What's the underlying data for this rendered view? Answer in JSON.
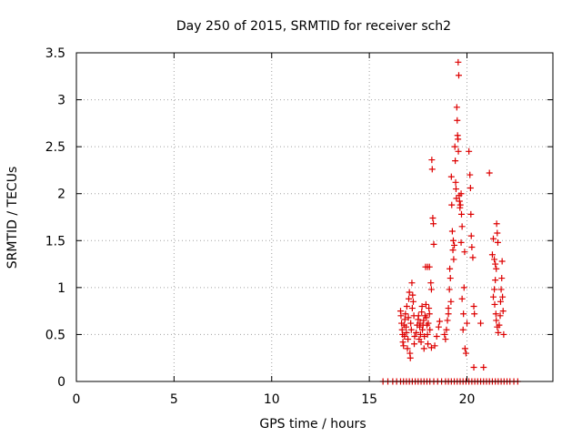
{
  "chart_data": {
    "type": "scatter",
    "title": "Day 250 of 2015, SRMTID for receiver sch2",
    "xlabel": "GPS time / hours",
    "ylabel": "SRMTID / TECUs",
    "xlim": [
      0,
      24.4
    ],
    "ylim": [
      0,
      3.5
    ],
    "xticks": [
      0,
      5,
      10,
      15,
      20
    ],
    "xtick_labels": [
      "0",
      "5",
      "10",
      "15",
      "20"
    ],
    "yticks": [
      0,
      0.5,
      1,
      1.5,
      2,
      2.5,
      3,
      3.5
    ],
    "ytick_labels": [
      "0",
      "0.5",
      "1",
      "1.5",
      "2",
      "2.5",
      "3",
      "3.5"
    ],
    "grid": true,
    "marker": "+",
    "series": [
      {
        "name": "sch2",
        "color": "#dd0000",
        "points": [
          [
            15.7,
            0
          ],
          [
            15.95,
            0
          ],
          [
            16.2,
            0
          ],
          [
            16.4,
            0
          ],
          [
            16.6,
            0
          ],
          [
            16.75,
            0
          ],
          [
            16.9,
            0
          ],
          [
            17.05,
            0
          ],
          [
            17.2,
            0
          ],
          [
            17.35,
            0
          ],
          [
            17.5,
            0
          ],
          [
            17.65,
            0
          ],
          [
            17.8,
            0
          ],
          [
            17.95,
            0
          ],
          [
            18.1,
            0
          ],
          [
            18.3,
            0
          ],
          [
            18.5,
            0
          ],
          [
            18.7,
            0
          ],
          [
            18.9,
            0
          ],
          [
            19.05,
            0
          ],
          [
            19.2,
            0
          ],
          [
            19.35,
            0
          ],
          [
            19.5,
            0
          ],
          [
            19.65,
            0
          ],
          [
            19.8,
            0
          ],
          [
            19.95,
            0
          ],
          [
            20.1,
            0
          ],
          [
            20.25,
            0
          ],
          [
            20.4,
            0
          ],
          [
            20.55,
            0
          ],
          [
            20.7,
            0
          ],
          [
            20.85,
            0
          ],
          [
            21.0,
            0
          ],
          [
            21.15,
            0
          ],
          [
            21.3,
            0
          ],
          [
            21.45,
            0
          ],
          [
            21.6,
            0
          ],
          [
            21.75,
            0
          ],
          [
            21.9,
            0
          ],
          [
            22.05,
            0
          ],
          [
            22.2,
            0
          ],
          [
            22.4,
            0
          ],
          [
            22.6,
            0
          ],
          [
            16.6,
            0.75
          ],
          [
            16.62,
            0.7
          ],
          [
            16.65,
            0.62
          ],
          [
            16.68,
            0.55
          ],
          [
            16.7,
            0.5
          ],
          [
            16.72,
            0.42
          ],
          [
            16.75,
            0.38
          ],
          [
            16.78,
            0.6
          ],
          [
            16.8,
            0.48
          ],
          [
            16.82,
            0.66
          ],
          [
            16.85,
            0.72
          ],
          [
            16.88,
            0.58
          ],
          [
            16.9,
            0.52
          ],
          [
            16.92,
            0.8
          ],
          [
            16.95,
            0.35
          ],
          [
            16.98,
            0.45
          ],
          [
            17.0,
            0.68
          ],
          [
            17.02,
            0.88
          ],
          [
            17.05,
            0.95
          ],
          [
            17.08,
            0.3
          ],
          [
            17.1,
            0.25
          ],
          [
            17.12,
            0.62
          ],
          [
            17.15,
            0.55
          ],
          [
            17.18,
            1.05
          ],
          [
            17.2,
            0.78
          ],
          [
            17.22,
            0.92
          ],
          [
            17.25,
            0.85
          ],
          [
            17.28,
            0.7
          ],
          [
            17.3,
            0.4
          ],
          [
            17.32,
            0.48
          ],
          [
            17.4,
            0.52
          ],
          [
            17.45,
            0.6
          ],
          [
            17.5,
            0.66
          ],
          [
            17.52,
            0.7
          ],
          [
            17.55,
            0.45
          ],
          [
            17.58,
            0.58
          ],
          [
            17.6,
            0.62
          ],
          [
            17.62,
            0.5
          ],
          [
            17.65,
            0.42
          ],
          [
            17.68,
            0.74
          ],
          [
            17.7,
            0.8
          ],
          [
            17.72,
            0.55
          ],
          [
            17.75,
            0.6
          ],
          [
            17.78,
            0.65
          ],
          [
            17.8,
            0.35
          ],
          [
            17.82,
            0.48
          ],
          [
            17.85,
            0.7
          ],
          [
            17.88,
            1.22
          ],
          [
            17.9,
            0.82
          ],
          [
            17.92,
            0.68
          ],
          [
            17.95,
            0.6
          ],
          [
            17.98,
            0.5
          ],
          [
            18.0,
            0.4
          ],
          [
            18.02,
            0.62
          ],
          [
            18.05,
            0.78
          ],
          [
            18.08,
            0.72
          ],
          [
            18.1,
            0.55
          ],
          [
            17.98,
            1.22
          ],
          [
            18.08,
            1.22
          ],
          [
            18.15,
            1.05
          ],
          [
            18.18,
            0.98
          ],
          [
            18.2,
            2.36
          ],
          [
            18.22,
            2.26
          ],
          [
            18.25,
            1.74
          ],
          [
            18.28,
            1.68
          ],
          [
            18.3,
            1.46
          ],
          [
            18.18,
            0.36
          ],
          [
            18.35,
            0.38
          ],
          [
            18.45,
            0.48
          ],
          [
            18.55,
            0.58
          ],
          [
            18.6,
            0.64
          ],
          [
            18.85,
            0.5
          ],
          [
            18.9,
            0.45
          ],
          [
            18.95,
            0.55
          ],
          [
            19.0,
            0.65
          ],
          [
            19.05,
            0.78
          ],
          [
            19.05,
            0.72
          ],
          [
            19.1,
            0.98
          ],
          [
            19.12,
            1.2
          ],
          [
            19.15,
            1.1
          ],
          [
            19.18,
            0.85
          ],
          [
            19.2,
            2.18
          ],
          [
            19.22,
            1.88
          ],
          [
            19.25,
            1.6
          ],
          [
            19.28,
            1.4
          ],
          [
            19.3,
            1.5
          ],
          [
            19.32,
            1.3
          ],
          [
            19.35,
            1.45
          ],
          [
            19.38,
            2.5
          ],
          [
            19.4,
            2.35
          ],
          [
            19.42,
            2.12
          ],
          [
            19.44,
            2.05
          ],
          [
            19.46,
            1.95
          ],
          [
            19.48,
            2.92
          ],
          [
            19.5,
            2.78
          ],
          [
            19.52,
            2.62
          ],
          [
            19.54,
            2.58
          ],
          [
            19.55,
            3.4
          ],
          [
            19.56,
            2.45
          ],
          [
            19.58,
            3.26
          ],
          [
            19.6,
            1.98
          ],
          [
            19.62,
            1.92
          ],
          [
            19.64,
            1.85
          ],
          [
            19.66,
            1.88
          ],
          [
            19.7,
            2.0
          ],
          [
            19.72,
            1.78
          ],
          [
            19.75,
            1.65
          ],
          [
            19.7,
            1.48
          ],
          [
            19.75,
            0.88
          ],
          [
            19.8,
            0.55
          ],
          [
            19.82,
            0.72
          ],
          [
            19.85,
            1.0
          ],
          [
            19.88,
            1.38
          ],
          [
            19.9,
            0.35
          ],
          [
            19.95,
            0.3
          ],
          [
            20.0,
            0.62
          ],
          [
            20.1,
            2.45
          ],
          [
            20.15,
            2.2
          ],
          [
            20.18,
            2.06
          ],
          [
            20.2,
            1.78
          ],
          [
            20.22,
            1.55
          ],
          [
            20.25,
            1.43
          ],
          [
            20.3,
            1.32
          ],
          [
            20.35,
            0.8
          ],
          [
            20.38,
            0.72
          ],
          [
            20.35,
            0.15
          ],
          [
            20.7,
            0.62
          ],
          [
            20.85,
            0.15
          ],
          [
            21.15,
            2.22
          ],
          [
            21.3,
            1.35
          ],
          [
            21.35,
            1.52
          ],
          [
            21.4,
            1.3
          ],
          [
            21.45,
            1.25
          ],
          [
            21.5,
            1.2
          ],
          [
            21.52,
            1.68
          ],
          [
            21.55,
            1.58
          ],
          [
            21.58,
            1.48
          ],
          [
            21.45,
            1.08
          ],
          [
            21.4,
            0.98
          ],
          [
            21.35,
            0.9
          ],
          [
            21.42,
            0.82
          ],
          [
            21.48,
            0.72
          ],
          [
            21.5,
            0.65
          ],
          [
            21.55,
            0.58
          ],
          [
            21.6,
            0.52
          ],
          [
            21.65,
            0.6
          ],
          [
            21.7,
            0.7
          ],
          [
            21.72,
            0.85
          ],
          [
            21.75,
            0.98
          ],
          [
            21.78,
            1.1
          ],
          [
            21.8,
            1.28
          ],
          [
            21.82,
            0.9
          ],
          [
            21.85,
            0.75
          ],
          [
            21.88,
            0.5
          ]
        ]
      }
    ]
  }
}
